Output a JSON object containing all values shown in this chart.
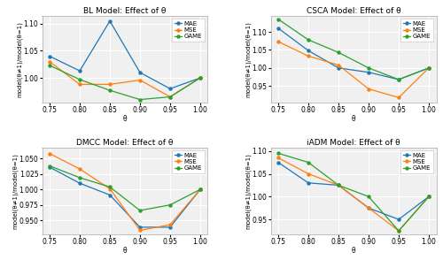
{
  "x": [
    0.75,
    0.8,
    0.85,
    0.9,
    0.95,
    1.0
  ],
  "BL": {
    "title": "BL Model: Effect of θ",
    "MAE": [
      1.04,
      1.013,
      1.105,
      1.01,
      0.98,
      1.0
    ],
    "MSE": [
      1.03,
      0.988,
      0.988,
      0.996,
      0.965,
      1.0
    ],
    "GAME": [
      1.023,
      0.997,
      0.977,
      0.96,
      0.965,
      1.0
    ],
    "ylim": [
      0.955,
      1.115
    ]
  },
  "CSCA": {
    "title": "CSCA Model: Effect of θ",
    "MAE": [
      1.11,
      1.048,
      1.0,
      0.988,
      0.968,
      1.0
    ],
    "MSE": [
      1.073,
      1.033,
      1.008,
      0.942,
      0.918,
      1.0
    ],
    "GAME": [
      1.135,
      1.078,
      1.043,
      1.0,
      0.968,
      1.0
    ],
    "ylim": [
      0.905,
      1.145
    ]
  },
  "DMCC": {
    "title": "DMCC Model: Effect of θ",
    "MAE": [
      1.036,
      1.01,
      0.991,
      0.939,
      0.939,
      1.0
    ],
    "MSE": [
      1.058,
      1.033,
      1.001,
      0.934,
      0.943,
      1.0
    ],
    "GAME": [
      1.038,
      1.019,
      1.004,
      0.966,
      0.975,
      1.0
    ],
    "ylim": [
      0.928,
      1.068
    ]
  },
  "iADM": {
    "title": "iADM Model: Effect of θ",
    "MAE": [
      1.075,
      1.03,
      1.025,
      0.975,
      0.95,
      1.0
    ],
    "MSE": [
      1.085,
      1.05,
      1.025,
      0.975,
      0.925,
      1.0
    ],
    "GAME": [
      1.095,
      1.075,
      1.025,
      1.0,
      0.925,
      1.0
    ],
    "ylim": [
      0.918,
      1.108
    ]
  },
  "colors": {
    "MAE": "#1f77b4",
    "MSE": "#ff7f0e",
    "GAME": "#2ca02c"
  },
  "xlabel": "θ",
  "ylabel": "model(θ≠1)/model(θ=1)",
  "xticks": [
    0.75,
    0.8,
    0.85,
    0.9,
    0.95,
    1.0
  ],
  "xticklabels": [
    "0.75",
    "0.80",
    "0.85",
    "0.90",
    "0.95",
    "1.00"
  ],
  "bg_color": "#f0f0f0",
  "grid_color": "white",
  "title_fontsize": 6.5,
  "tick_fontsize": 5.5,
  "label_fontsize": 5.5,
  "legend_fontsize": 5.0,
  "linewidth": 0.9,
  "markersize": 2.2
}
